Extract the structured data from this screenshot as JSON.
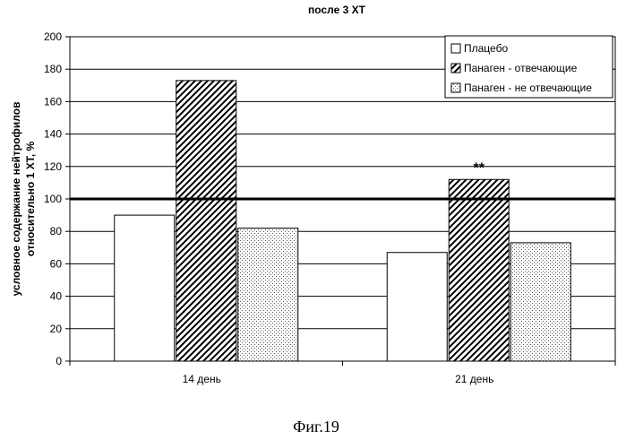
{
  "chart_data": {
    "type": "bar",
    "title": "после 3 ХТ",
    "ylabel_line1": "условное содержание нейтрофилов",
    "ylabel_line2": "относительно 1 ХТ, %",
    "xlabel": "",
    "categories": [
      "14 день",
      "21 день"
    ],
    "series": [
      {
        "name": "Плацебо",
        "values": [
          90,
          67
        ],
        "pattern": "white"
      },
      {
        "name": "Панаген - отвечающие",
        "values": [
          173,
          112
        ],
        "pattern": "diagonal-hatch"
      },
      {
        "name": "Панаген - не отвечающие",
        "values": [
          82,
          73
        ],
        "pattern": "dots"
      }
    ],
    "ylim": [
      0,
      200
    ],
    "yticks": [
      0,
      20,
      40,
      60,
      80,
      100,
      120,
      140,
      160,
      180,
      200
    ],
    "ytick_labels": [
      "0",
      "20",
      "40",
      "60",
      "80",
      "100",
      "120",
      "140",
      "160",
      "180",
      "200"
    ],
    "reference_line": 100,
    "grid": true,
    "legend_position": "top-right",
    "annotations": [
      {
        "text": "**",
        "category_index": 1,
        "series_index": 1
      }
    ]
  },
  "figure_caption": "Фиг.19"
}
